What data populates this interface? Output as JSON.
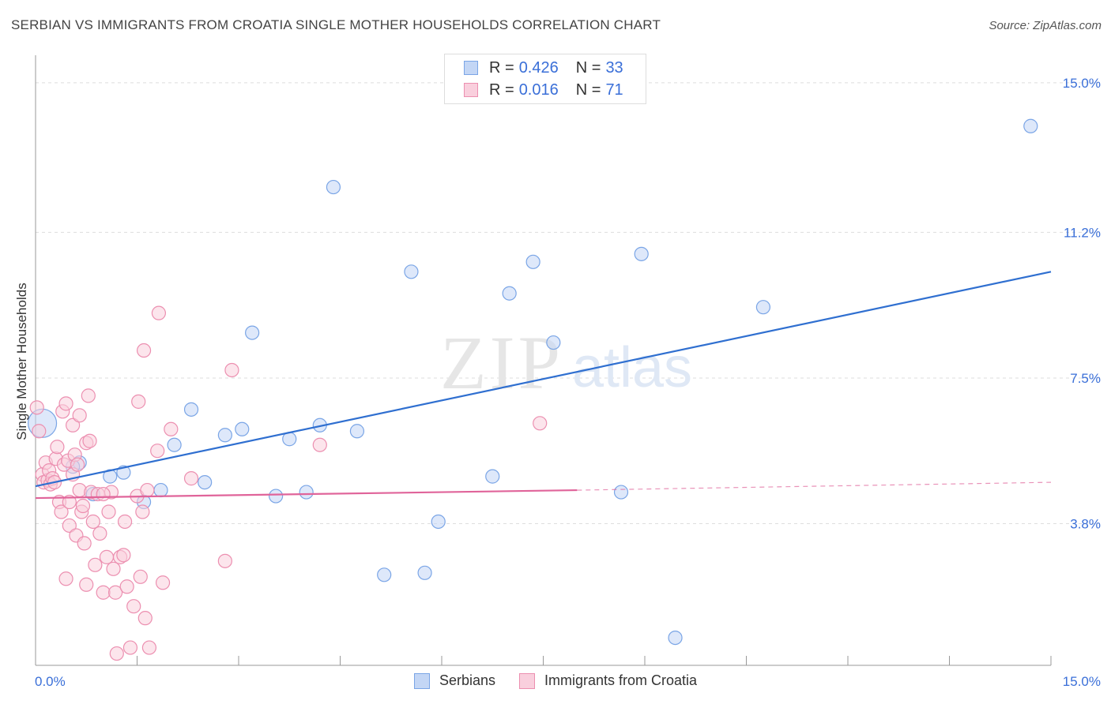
{
  "title": "SERBIAN VS IMMIGRANTS FROM CROATIA SINGLE MOTHER HOUSEHOLDS CORRELATION CHART",
  "source": "Source: ZipAtlas.com",
  "watermark": {
    "zip": "ZIP",
    "atlas": "atlas"
  },
  "legend": {
    "r_label": "R =",
    "n_label": "N =",
    "rows": [
      {
        "r": "0.426",
        "n": "33"
      },
      {
        "r": "0.016",
        "n": "71"
      }
    ]
  },
  "chart_data": {
    "type": "scatter",
    "title": "SERBIAN VS IMMIGRANTS FROM CROATIA SINGLE MOTHER HOUSEHOLDS CORRELATION CHART",
    "xlabel": "",
    "ylabel": "Single Mother Households",
    "xlim": [
      0,
      15
    ],
    "ylim": [
      0.2,
      15.7
    ],
    "x_tick_labels": [
      "0.0%",
      "15.0%"
    ],
    "y_ticks": [
      3.8,
      7.5,
      11.2,
      15.0
    ],
    "y_tick_labels": [
      "3.8%",
      "7.5%",
      "11.2%",
      "15.0%"
    ],
    "grid": true,
    "legend_position": "top-center",
    "series": [
      {
        "name": "Serbians",
        "color": "#7aa5e6",
        "fill": "#c3d6f5",
        "trend": {
          "x": [
            0,
            15
          ],
          "y": [
            4.75,
            10.2
          ],
          "color": "#2f6fd0"
        },
        "points": [
          {
            "x": 0.1,
            "y": 6.35,
            "r": 18
          },
          {
            "x": 0.65,
            "y": 5.35
          },
          {
            "x": 0.55,
            "y": 5.25
          },
          {
            "x": 0.85,
            "y": 4.55
          },
          {
            "x": 1.1,
            "y": 5.0
          },
          {
            "x": 1.3,
            "y": 5.1
          },
          {
            "x": 1.6,
            "y": 4.35
          },
          {
            "x": 1.85,
            "y": 4.65
          },
          {
            "x": 2.05,
            "y": 5.8
          },
          {
            "x": 2.3,
            "y": 6.7
          },
          {
            "x": 2.5,
            "y": 4.85
          },
          {
            "x": 2.8,
            "y": 6.05
          },
          {
            "x": 3.05,
            "y": 6.2
          },
          {
            "x": 3.2,
            "y": 8.65
          },
          {
            "x": 3.55,
            "y": 4.5
          },
          {
            "x": 3.75,
            "y": 5.95
          },
          {
            "x": 4.0,
            "y": 4.6
          },
          {
            "x": 4.2,
            "y": 6.3
          },
          {
            "x": 4.4,
            "y": 12.35
          },
          {
            "x": 4.75,
            "y": 6.15
          },
          {
            "x": 5.15,
            "y": 2.5
          },
          {
            "x": 5.55,
            "y": 10.2
          },
          {
            "x": 5.75,
            "y": 2.55
          },
          {
            "x": 5.95,
            "y": 3.85
          },
          {
            "x": 6.75,
            "y": 5.0
          },
          {
            "x": 7.0,
            "y": 9.65
          },
          {
            "x": 7.35,
            "y": 10.45
          },
          {
            "x": 7.65,
            "y": 8.4
          },
          {
            "x": 8.65,
            "y": 4.6
          },
          {
            "x": 8.95,
            "y": 10.65
          },
          {
            "x": 9.45,
            "y": 0.9
          },
          {
            "x": 10.75,
            "y": 9.3
          },
          {
            "x": 14.7,
            "y": 13.9
          }
        ]
      },
      {
        "name": "Immigrants from Croatia",
        "color": "#ec8fb0",
        "fill": "#f9cfdd",
        "trend": {
          "x": [
            0,
            8.0
          ],
          "y": [
            4.45,
            4.65
          ],
          "dash_to": {
            "x": 15,
            "y": 4.85
          },
          "color": "#e0649a"
        },
        "points": [
          {
            "x": 0.02,
            "y": 6.75
          },
          {
            "x": 0.05,
            "y": 6.15
          },
          {
            "x": 0.1,
            "y": 5.05
          },
          {
            "x": 0.12,
            "y": 4.85
          },
          {
            "x": 0.15,
            "y": 5.35
          },
          {
            "x": 0.18,
            "y": 4.9
          },
          {
            "x": 0.2,
            "y": 5.15
          },
          {
            "x": 0.22,
            "y": 4.8
          },
          {
            "x": 0.25,
            "y": 4.95
          },
          {
            "x": 0.28,
            "y": 4.85
          },
          {
            "x": 0.3,
            "y": 5.45
          },
          {
            "x": 0.32,
            "y": 5.75
          },
          {
            "x": 0.35,
            "y": 4.35
          },
          {
            "x": 0.38,
            "y": 4.1
          },
          {
            "x": 0.4,
            "y": 6.65
          },
          {
            "x": 0.42,
            "y": 5.3
          },
          {
            "x": 0.45,
            "y": 6.85
          },
          {
            "x": 0.48,
            "y": 5.4
          },
          {
            "x": 0.5,
            "y": 4.35
          },
          {
            "x": 0.45,
            "y": 2.4
          },
          {
            "x": 0.5,
            "y": 3.75
          },
          {
            "x": 0.55,
            "y": 5.05
          },
          {
            "x": 0.55,
            "y": 6.3
          },
          {
            "x": 0.58,
            "y": 5.55
          },
          {
            "x": 0.6,
            "y": 3.5
          },
          {
            "x": 0.62,
            "y": 5.3
          },
          {
            "x": 0.65,
            "y": 6.55
          },
          {
            "x": 0.65,
            "y": 4.65
          },
          {
            "x": 0.68,
            "y": 4.1
          },
          {
            "x": 0.7,
            "y": 4.25
          },
          {
            "x": 0.72,
            "y": 3.3
          },
          {
            "x": 0.75,
            "y": 2.25
          },
          {
            "x": 0.75,
            "y": 5.85
          },
          {
            "x": 0.78,
            "y": 7.05
          },
          {
            "x": 0.8,
            "y": 5.9
          },
          {
            "x": 0.82,
            "y": 4.6
          },
          {
            "x": 0.85,
            "y": 3.85
          },
          {
            "x": 0.88,
            "y": 2.75
          },
          {
            "x": 0.92,
            "y": 4.55
          },
          {
            "x": 0.95,
            "y": 3.55
          },
          {
            "x": 1.0,
            "y": 2.05
          },
          {
            "x": 1.05,
            "y": 2.95
          },
          {
            "x": 1.08,
            "y": 4.1
          },
          {
            "x": 1.12,
            "y": 4.6
          },
          {
            "x": 1.15,
            "y": 2.65
          },
          {
            "x": 1.18,
            "y": 2.05
          },
          {
            "x": 1.2,
            "y": 0.5
          },
          {
            "x": 1.25,
            "y": 2.95
          },
          {
            "x": 1.3,
            "y": 3.0
          },
          {
            "x": 1.32,
            "y": 3.85
          },
          {
            "x": 1.35,
            "y": 2.2
          },
          {
            "x": 1.4,
            "y": 0.65
          },
          {
            "x": 1.45,
            "y": 1.7
          },
          {
            "x": 1.5,
            "y": 4.5
          },
          {
            "x": 1.52,
            "y": 6.9
          },
          {
            "x": 1.55,
            "y": 2.45
          },
          {
            "x": 1.58,
            "y": 4.1
          },
          {
            "x": 1.6,
            "y": 8.2
          },
          {
            "x": 1.62,
            "y": 1.4
          },
          {
            "x": 1.65,
            "y": 4.65
          },
          {
            "x": 1.68,
            "y": 0.65
          },
          {
            "x": 1.8,
            "y": 5.65
          },
          {
            "x": 1.82,
            "y": 9.15
          },
          {
            "x": 1.88,
            "y": 2.3
          },
          {
            "x": 2.0,
            "y": 6.2
          },
          {
            "x": 2.3,
            "y": 4.95
          },
          {
            "x": 2.8,
            "y": 2.85
          },
          {
            "x": 2.9,
            "y": 7.7
          },
          {
            "x": 4.2,
            "y": 5.8
          },
          {
            "x": 7.45,
            "y": 6.35
          },
          {
            "x": 1.0,
            "y": 4.55
          }
        ]
      }
    ]
  }
}
